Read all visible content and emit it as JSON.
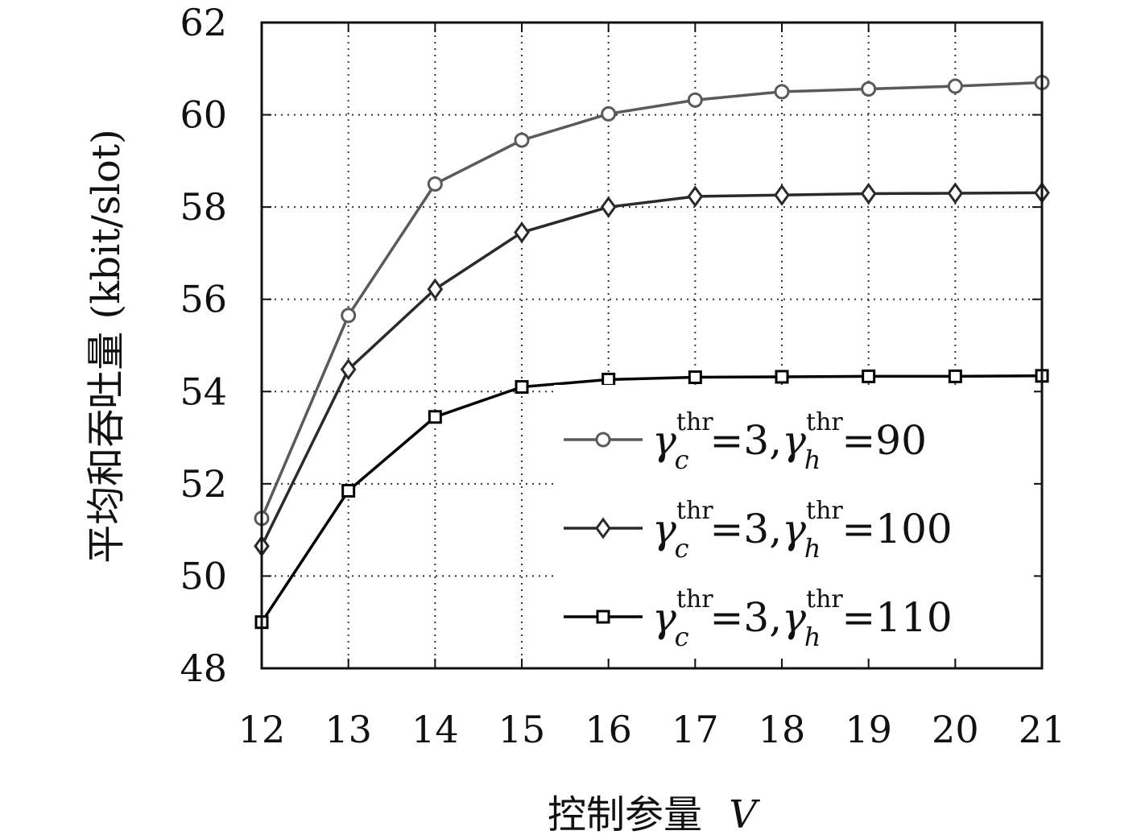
{
  "chart_data": {
    "type": "line",
    "xlabel": "控制参量",
    "xlabel_var": "V",
    "ylabel": "平均和吞吐量 (kbit/slot)",
    "x": [
      12,
      13,
      14,
      15,
      16,
      17,
      18,
      19,
      20,
      21
    ],
    "xlim": [
      12,
      21
    ],
    "ylim": [
      48,
      62
    ],
    "yticks": [
      48,
      50,
      52,
      54,
      56,
      58,
      60,
      62
    ],
    "xticks": [
      12,
      13,
      14,
      15,
      16,
      17,
      18,
      19,
      20,
      21
    ],
    "grid": true,
    "legend_position": "lower-right",
    "series": [
      {
        "name": "γ_c^thr=3,γ_h^thr=90",
        "legend": {
          "gc_val": "3",
          "gh_val": "90"
        },
        "marker": "circle",
        "color": "#5a5a5a",
        "values": [
          51.25,
          55.65,
          58.5,
          59.45,
          60.02,
          60.32,
          60.5,
          60.56,
          60.62,
          60.7
        ]
      },
      {
        "name": "γ_c^thr=3,γ_h^thr=100",
        "legend": {
          "gc_val": "3",
          "gh_val": "100"
        },
        "marker": "diamond",
        "color": "#2a2a2a",
        "values": [
          50.65,
          54.48,
          56.22,
          57.45,
          58.0,
          58.23,
          58.26,
          58.29,
          58.3,
          58.31
        ]
      },
      {
        "name": "γ_c^thr=3,γ_h^thr=110",
        "legend": {
          "gc_val": "3",
          "gh_val": "110"
        },
        "marker": "square",
        "color": "#000000",
        "values": [
          49.0,
          51.85,
          53.45,
          54.1,
          54.26,
          54.31,
          54.32,
          54.33,
          54.33,
          54.34
        ]
      }
    ]
  },
  "legend_symbols": {
    "gamma": "γ",
    "sub_c": "c",
    "sub_h": "h",
    "sup": "thr",
    "eq": "=",
    "comma": ","
  }
}
